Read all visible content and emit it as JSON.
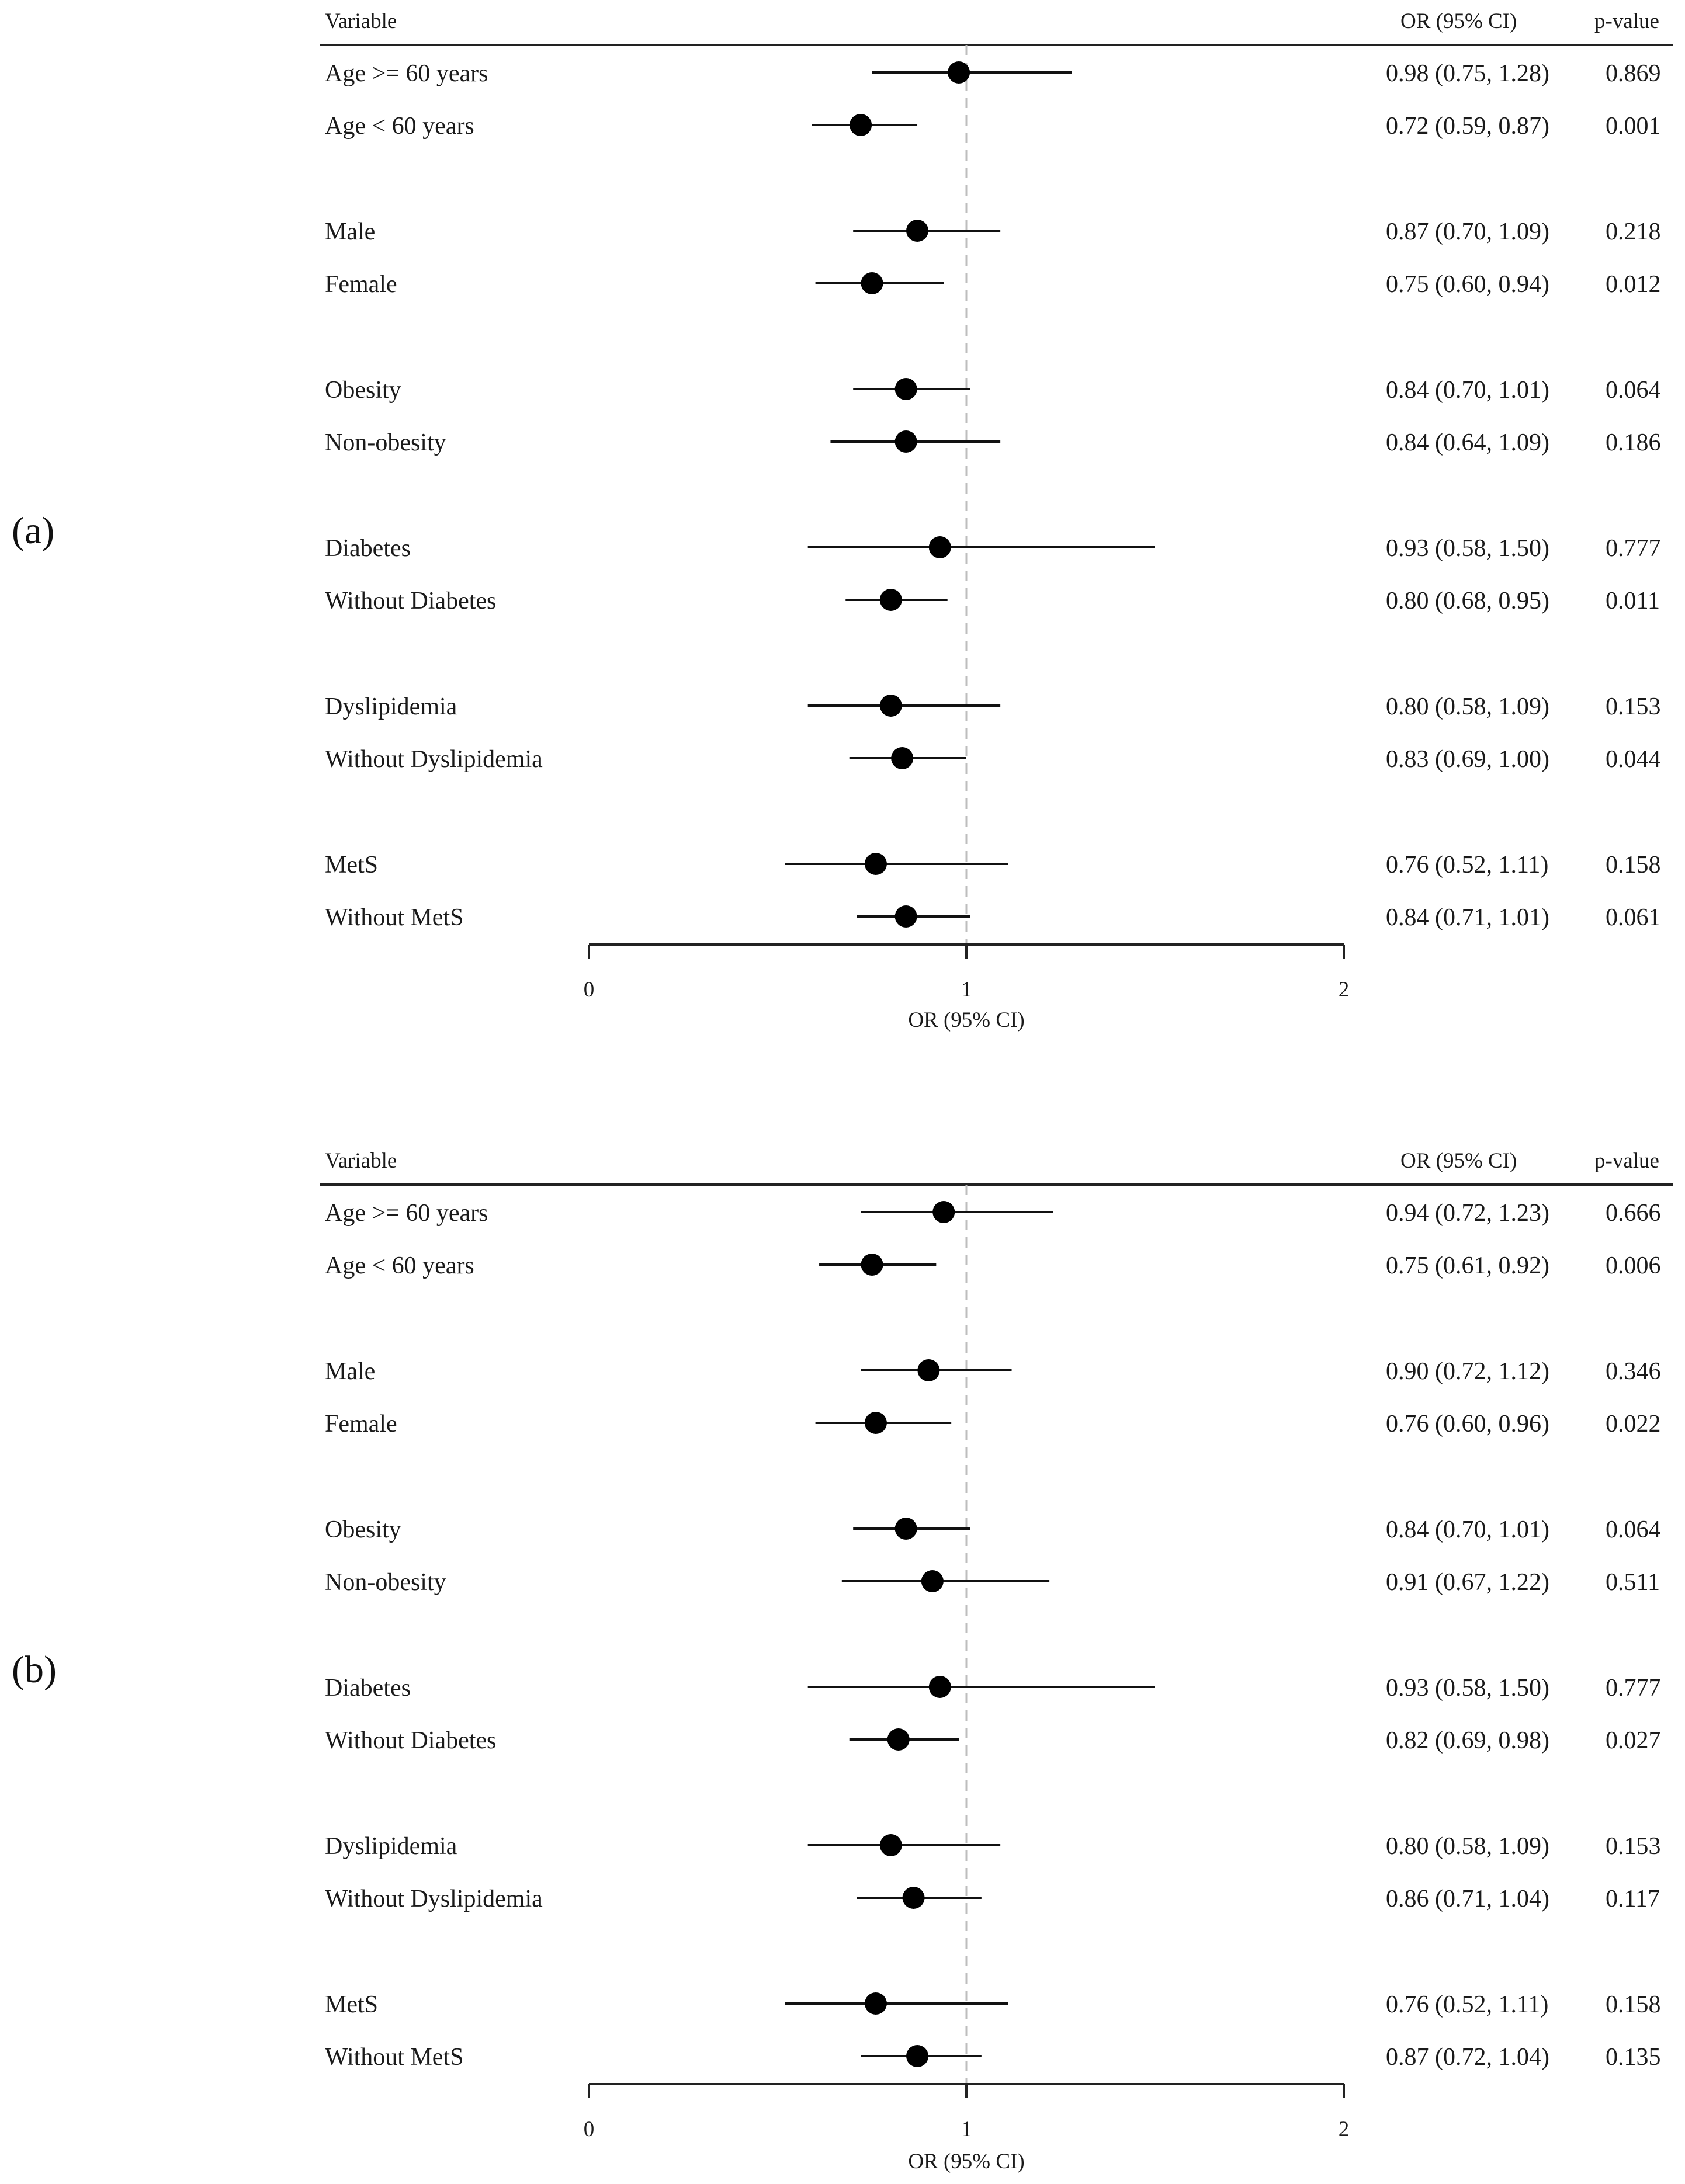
{
  "chart_data": [
    {
      "type": "forest",
      "panel_label": "(a)",
      "headers": {
        "variable": "Variable",
        "or_ci": "OR (95% CI)",
        "pvalue": "p-value"
      },
      "xlabel": "OR (95% CI)",
      "xlim": [
        0,
        2
      ],
      "xticks": [
        "0",
        "1",
        "2"
      ],
      "reference_line": 1,
      "rows": [
        {
          "label": "Age >= 60 years",
          "or": 0.98,
          "lo": 0.75,
          "hi": 1.28,
          "or_text": "0.98 (0.75, 1.28)",
          "p": "0.869"
        },
        {
          "label": "Age < 60 years",
          "or": 0.72,
          "lo": 0.59,
          "hi": 0.87,
          "or_text": "0.72 (0.59, 0.87)",
          "p": "0.001"
        },
        {
          "label": "Male",
          "or": 0.87,
          "lo": 0.7,
          "hi": 1.09,
          "or_text": "0.87 (0.70, 1.09)",
          "p": "0.218"
        },
        {
          "label": "Female",
          "or": 0.75,
          "lo": 0.6,
          "hi": 0.94,
          "or_text": "0.75 (0.60, 0.94)",
          "p": "0.012"
        },
        {
          "label": "Obesity",
          "or": 0.84,
          "lo": 0.7,
          "hi": 1.01,
          "or_text": "0.84 (0.70, 1.01)",
          "p": "0.064"
        },
        {
          "label": "Non-obesity",
          "or": 0.84,
          "lo": 0.64,
          "hi": 1.09,
          "or_text": "0.84 (0.64, 1.09)",
          "p": "0.186"
        },
        {
          "label": "Diabetes",
          "or": 0.93,
          "lo": 0.58,
          "hi": 1.5,
          "or_text": "0.93 (0.58, 1.50)",
          "p": "0.777"
        },
        {
          "label": "Without Diabetes",
          "or": 0.8,
          "lo": 0.68,
          "hi": 0.95,
          "or_text": "0.80 (0.68, 0.95)",
          "p": "0.011"
        },
        {
          "label": "Dyslipidemia",
          "or": 0.8,
          "lo": 0.58,
          "hi": 1.09,
          "or_text": "0.80 (0.58, 1.09)",
          "p": "0.153"
        },
        {
          "label": "Without Dyslipidemia",
          "or": 0.83,
          "lo": 0.69,
          "hi": 1.0,
          "or_text": "0.83 (0.69, 1.00)",
          "p": "0.044"
        },
        {
          "label": "MetS",
          "or": 0.76,
          "lo": 0.52,
          "hi": 1.11,
          "or_text": "0.76 (0.52, 1.11)",
          "p": "0.158"
        },
        {
          "label": "Without MetS",
          "or": 0.84,
          "lo": 0.71,
          "hi": 1.01,
          "or_text": "0.84 (0.71, 1.01)",
          "p": "0.061"
        }
      ]
    },
    {
      "type": "forest",
      "panel_label": "(b)",
      "headers": {
        "variable": "Variable",
        "or_ci": "OR (95% CI)",
        "pvalue": "p-value"
      },
      "xlabel": "OR (95% CI)",
      "xlim": [
        0,
        2
      ],
      "xticks": [
        "0",
        "1",
        "2"
      ],
      "reference_line": 1,
      "rows": [
        {
          "label": "Age >= 60 years",
          "or": 0.94,
          "lo": 0.72,
          "hi": 1.23,
          "or_text": "0.94 (0.72, 1.23)",
          "p": "0.666"
        },
        {
          "label": "Age < 60 years",
          "or": 0.75,
          "lo": 0.61,
          "hi": 0.92,
          "or_text": "0.75 (0.61, 0.92)",
          "p": "0.006"
        },
        {
          "label": "Male",
          "or": 0.9,
          "lo": 0.72,
          "hi": 1.12,
          "or_text": "0.90 (0.72, 1.12)",
          "p": "0.346"
        },
        {
          "label": "Female",
          "or": 0.76,
          "lo": 0.6,
          "hi": 0.96,
          "or_text": "0.76 (0.60, 0.96)",
          "p": "0.022"
        },
        {
          "label": "Obesity",
          "or": 0.84,
          "lo": 0.7,
          "hi": 1.01,
          "or_text": "0.84 (0.70, 1.01)",
          "p": "0.064"
        },
        {
          "label": "Non-obesity",
          "or": 0.91,
          "lo": 0.67,
          "hi": 1.22,
          "or_text": "0.91 (0.67, 1.22)",
          "p": "0.511"
        },
        {
          "label": "Diabetes",
          "or": 0.93,
          "lo": 0.58,
          "hi": 1.5,
          "or_text": "0.93 (0.58, 1.50)",
          "p": "0.777"
        },
        {
          "label": "Without Diabetes",
          "or": 0.82,
          "lo": 0.69,
          "hi": 0.98,
          "or_text": "0.82 (0.69, 0.98)",
          "p": "0.027"
        },
        {
          "label": "Dyslipidemia",
          "or": 0.8,
          "lo": 0.58,
          "hi": 1.09,
          "or_text": "0.80 (0.58, 1.09)",
          "p": "0.153"
        },
        {
          "label": "Without Dyslipidemia",
          "or": 0.86,
          "lo": 0.71,
          "hi": 1.04,
          "or_text": "0.86 (0.71, 1.04)",
          "p": "0.117"
        },
        {
          "label": "MetS",
          "or": 0.76,
          "lo": 0.52,
          "hi": 1.11,
          "or_text": "0.76 (0.52, 1.11)",
          "p": "0.158"
        },
        {
          "label": "Without MetS",
          "or": 0.87,
          "lo": 0.72,
          "hi": 1.04,
          "or_text": "0.87 (0.72, 1.04)",
          "p": "0.135"
        }
      ]
    }
  ]
}
